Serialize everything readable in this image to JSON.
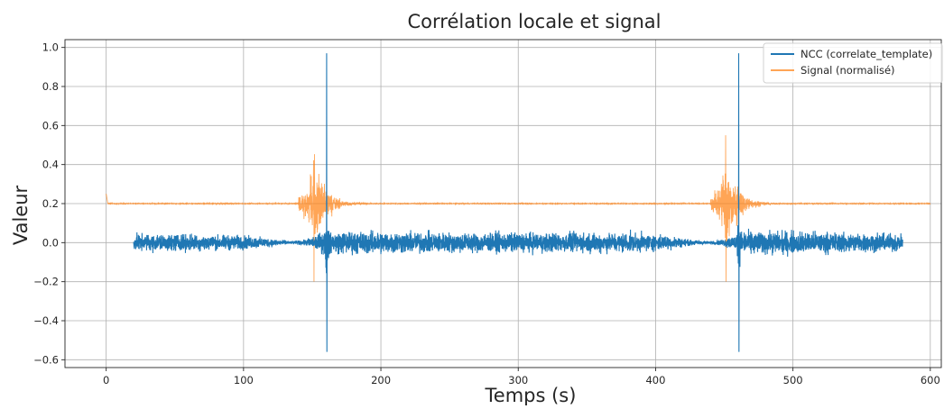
{
  "chart_data": {
    "type": "line",
    "title": "Corrélation locale et signal",
    "xlabel": "Temps (s)",
    "ylabel": "Valeur",
    "xlim": [
      -30,
      608
    ],
    "ylim": [
      -0.64,
      1.04
    ],
    "xticks": [
      0,
      100,
      200,
      300,
      400,
      500,
      600
    ],
    "yticks": [
      -0.6,
      -0.4,
      -0.2,
      0.0,
      0.2,
      0.4,
      0.6,
      0.8,
      1.0
    ],
    "xtick_labels": [
      "0",
      "100",
      "200",
      "300",
      "400",
      "500",
      "600"
    ],
    "ytick_labels": [
      "−0.6",
      "−0.4",
      "−0.2",
      "0.0",
      "0.2",
      "0.4",
      "0.6",
      "0.8",
      "1.0"
    ],
    "grid": true,
    "legend_position": "top-right",
    "series": [
      {
        "name": "NCC (correlate_template)",
        "color": "#1f77b4",
        "x_range": [
          20,
          580
        ],
        "baseline": 0.0,
        "envelope": [
          [
            20,
            0.06
          ],
          [
            60,
            0.06
          ],
          [
            100,
            0.05
          ],
          [
            120,
            0.03
          ],
          [
            135,
            0.01
          ],
          [
            145,
            0.02
          ],
          [
            152,
            0.05
          ],
          [
            158,
            0.08
          ],
          [
            165,
            0.08
          ],
          [
            200,
            0.08
          ],
          [
            260,
            0.07
          ],
          [
            320,
            0.07
          ],
          [
            380,
            0.07
          ],
          [
            410,
            0.05
          ],
          [
            425,
            0.02
          ],
          [
            440,
            0.01
          ],
          [
            448,
            0.02
          ],
          [
            455,
            0.05
          ],
          [
            465,
            0.08
          ],
          [
            500,
            0.08
          ],
          [
            540,
            0.07
          ],
          [
            580,
            0.06
          ]
        ],
        "peaks": [
          {
            "x": 160.5,
            "max": 0.97,
            "min": -0.56
          },
          {
            "x": 460.5,
            "max": 0.97,
            "min": -0.56
          }
        ]
      },
      {
        "name": "Signal (normalisé)",
        "color": "#ff7f0e",
        "x_range": [
          0,
          600
        ],
        "baseline": 0.2,
        "start_spike": 0.25,
        "events": [
          {
            "start": 140,
            "peak_x": 151,
            "max": 0.55,
            "min": -0.2,
            "end": 200
          },
          {
            "start": 440,
            "peak_x": 451,
            "max": 0.55,
            "min": -0.2,
            "end": 500
          }
        ]
      }
    ]
  }
}
